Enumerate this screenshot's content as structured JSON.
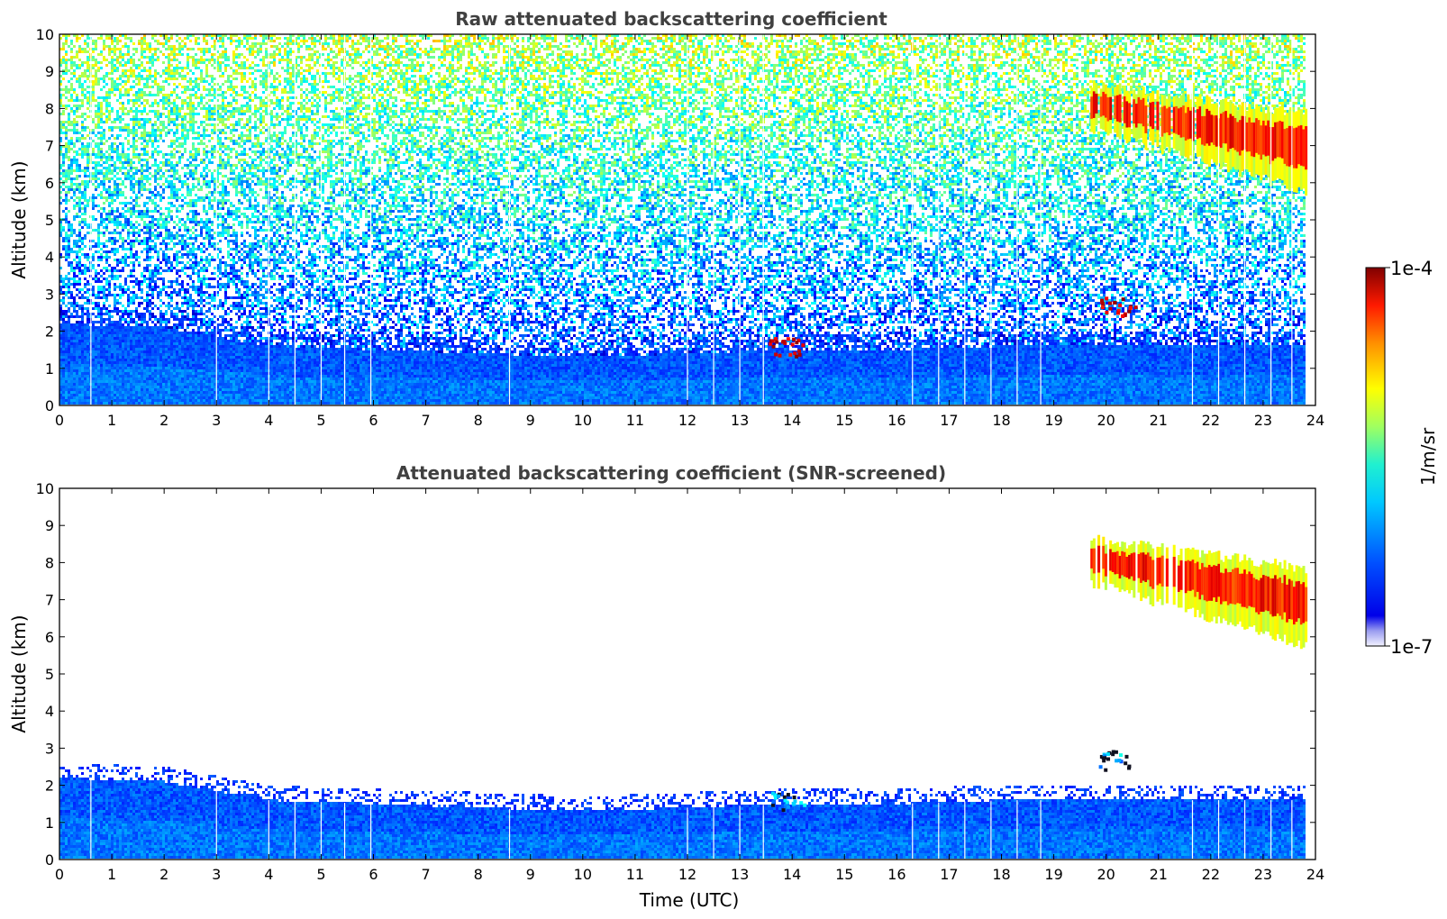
{
  "chart_data": [
    {
      "type": "heatmap",
      "title": "Raw attenuated backscattering coefficient",
      "xlabel": "",
      "ylabel": "Altitude (km)",
      "xlim": [
        0,
        24
      ],
      "ylim": [
        0,
        10
      ],
      "xticks": [
        "0",
        "1",
        "2",
        "3",
        "4",
        "5",
        "6",
        "7",
        "8",
        "9",
        "10",
        "11",
        "12",
        "13",
        "14",
        "15",
        "16",
        "17",
        "18",
        "19",
        "20",
        "21",
        "22",
        "23",
        "24"
      ],
      "yticks": [
        "0",
        "1",
        "2",
        "3",
        "4",
        "5",
        "6",
        "7",
        "8",
        "9",
        "10"
      ],
      "data_end_time": 23.85,
      "features": {
        "boundary_layer_top_km": [
          [
            0,
            2.2
          ],
          [
            2,
            2.1
          ],
          [
            4,
            1.6
          ],
          [
            6,
            1.5
          ],
          [
            8,
            1.4
          ],
          [
            10,
            1.3
          ],
          [
            12,
            1.4
          ],
          [
            14,
            1.5
          ],
          [
            16,
            1.5
          ],
          [
            18,
            1.6
          ],
          [
            20,
            1.6
          ],
          [
            22,
            1.6
          ],
          [
            23.85,
            1.6
          ]
        ],
        "noise_increases_with_altitude": true,
        "cirrus_region": {
          "time": [
            19.7,
            23.8
          ],
          "altitude_km": [
            5.5,
            8.8
          ]
        },
        "low_cloud_patches": [
          {
            "time": 20.2,
            "altitude_km": 2.7
          },
          {
            "time": 13.9,
            "altitude_km": 1.6
          }
        ],
        "data_gaps_utc": [
          0.6,
          3.0,
          4.0,
          4.5,
          5.0,
          5.45,
          5.95,
          8.6,
          12.0,
          12.5,
          13.0,
          13.45,
          16.3,
          16.8,
          17.3,
          17.8,
          18.3,
          18.75,
          21.65,
          22.15,
          22.65,
          23.15,
          23.55
        ]
      }
    },
    {
      "type": "heatmap",
      "title": "Attenuated backscattering coefficient (SNR-screened)",
      "xlabel": "Time (UTC)",
      "ylabel": "Altitude (km)",
      "xlim": [
        0,
        24
      ],
      "ylim": [
        0,
        10
      ],
      "xticks": [
        "0",
        "1",
        "2",
        "3",
        "4",
        "5",
        "6",
        "7",
        "8",
        "9",
        "10",
        "11",
        "12",
        "13",
        "14",
        "15",
        "16",
        "17",
        "18",
        "19",
        "20",
        "21",
        "22",
        "23",
        "24"
      ],
      "yticks": [
        "0",
        "1",
        "2",
        "3",
        "4",
        "5",
        "6",
        "7",
        "8",
        "9",
        "10"
      ],
      "data_end_time": 23.85,
      "features": {
        "boundary_layer_top_km": [
          [
            0,
            2.2
          ],
          [
            2,
            2.1
          ],
          [
            4,
            1.6
          ],
          [
            6,
            1.5
          ],
          [
            8,
            1.4
          ],
          [
            10,
            1.3
          ],
          [
            12,
            1.4
          ],
          [
            14,
            1.5
          ],
          [
            16,
            1.5
          ],
          [
            18,
            1.6
          ],
          [
            20,
            1.6
          ],
          [
            22,
            1.6
          ],
          [
            23.85,
            1.6
          ]
        ],
        "cirrus_region": {
          "time": [
            19.7,
            23.8
          ],
          "altitude_km": [
            5.5,
            8.8
          ]
        },
        "low_cloud_patches": [
          {
            "time": 20.2,
            "altitude_km": 2.7
          },
          {
            "time": 13.9,
            "altitude_km": 1.6
          }
        ]
      }
    }
  ],
  "colorbar": {
    "label": "1/m/sr",
    "min_label": "1e-7",
    "max_label": "1e-4",
    "scale": "log",
    "colormap": "jet"
  }
}
